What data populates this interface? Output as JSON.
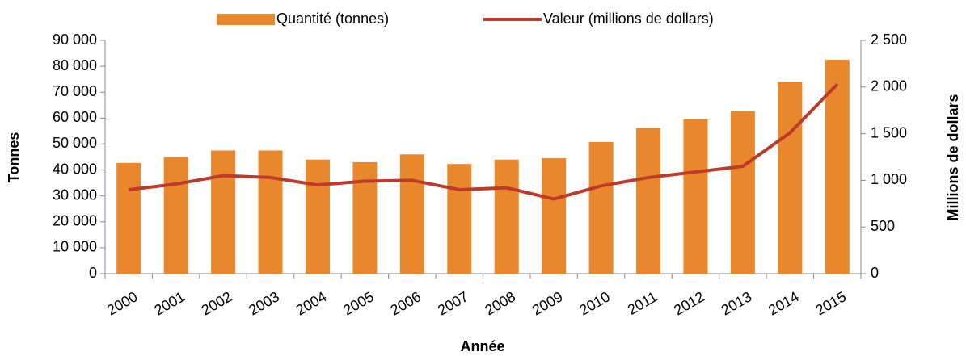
{
  "chart_data": {
    "type": "bar-line",
    "xlabel": "Année",
    "ylabel": "Tonnes",
    "y2label": "Millions de dollars",
    "categories": [
      "2000",
      "2001",
      "2002",
      "2003",
      "2004",
      "2005",
      "2006",
      "2007",
      "2008",
      "2009",
      "2010",
      "2011",
      "2012",
      "2013",
      "2014",
      "2015"
    ],
    "series": [
      {
        "name": "Quantité (tonnes)",
        "type": "bar",
        "color": "#E8872C",
        "axis": "y",
        "values": [
          42700,
          45000,
          47500,
          47500,
          44000,
          43000,
          46000,
          42300,
          44000,
          44500,
          50800,
          56200,
          59500,
          62700,
          74000,
          82500
        ]
      },
      {
        "name": "Valeur (millions de dollars)",
        "type": "line",
        "color": "#BE3A2A",
        "axis": "y2",
        "values": [
          900,
          960,
          1050,
          1030,
          950,
          990,
          1000,
          900,
          920,
          800,
          940,
          1030,
          1090,
          1150,
          1510,
          2030
        ]
      }
    ],
    "ylim": [
      0,
      90000
    ],
    "yticks": [
      0,
      {
        "value": 10000,
        "label": "10 000"
      },
      {
        "value": 20000,
        "label": "20 000"
      },
      {
        "value": 30000,
        "label": "30 000"
      },
      {
        "value": 40000,
        "label": "40 000"
      },
      {
        "value": 50000,
        "label": "50 000"
      },
      {
        "value": 60000,
        "label": "60 000"
      },
      {
        "value": 70000,
        "label": "70 000"
      },
      {
        "value": 80000,
        "label": "80 000"
      },
      {
        "value": 90000,
        "label": "90 000"
      }
    ],
    "y2lim": [
      0,
      2500
    ],
    "y2ticks": [
      0,
      500,
      {
        "value": 1000,
        "label": "1 000"
      },
      {
        "value": 1500,
        "label": "1 500"
      },
      {
        "value": 2000,
        "label": "2 000"
      },
      {
        "value": 2500,
        "label": "2 500"
      }
    ],
    "legend": "top",
    "grid": false
  }
}
